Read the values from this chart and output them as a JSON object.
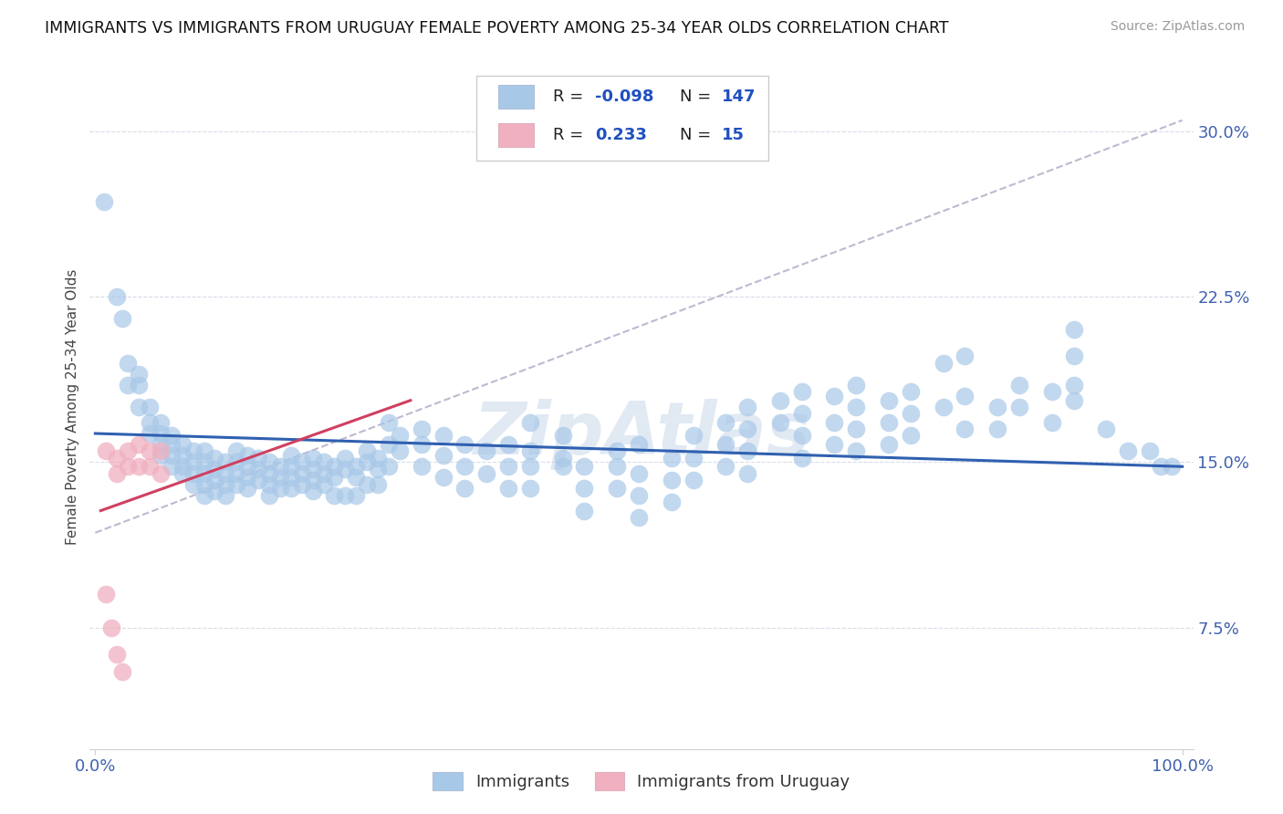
{
  "title": "IMMIGRANTS VS IMMIGRANTS FROM URUGUAY FEMALE POVERTY AMONG 25-34 YEAR OLDS CORRELATION CHART",
  "source": "Source: ZipAtlas.com",
  "ylabel": "Female Poverty Among 25-34 Year Olds",
  "xlim": [
    -0.005,
    1.01
  ],
  "ylim": [
    0.02,
    0.33
  ],
  "yticks": [
    0.075,
    0.15,
    0.225,
    0.3
  ],
  "yticklabels": [
    "7.5%",
    "15.0%",
    "22.5%",
    "30.0%"
  ],
  "color_immigrants": "#a8c8e8",
  "color_uruguay": "#f0b0c0",
  "line_color_immigrants": "#3060b0",
  "line_color_uruguay": "#d04060",
  "dash_color": "#c0b8d0",
  "watermark": "ZipAtlas",
  "background_color": "#ffffff",
  "blue_line_x0": 0.0,
  "blue_line_x1": 1.0,
  "blue_line_y0": 0.163,
  "blue_line_y1": 0.148,
  "pink_line_x0": 0.005,
  "pink_line_x1": 0.29,
  "pink_line_y0": 0.128,
  "pink_line_y1": 0.178,
  "dash_line_x0": 0.0,
  "dash_line_x1": 1.0,
  "dash_line_y0": 0.118,
  "dash_line_y1": 0.305
}
